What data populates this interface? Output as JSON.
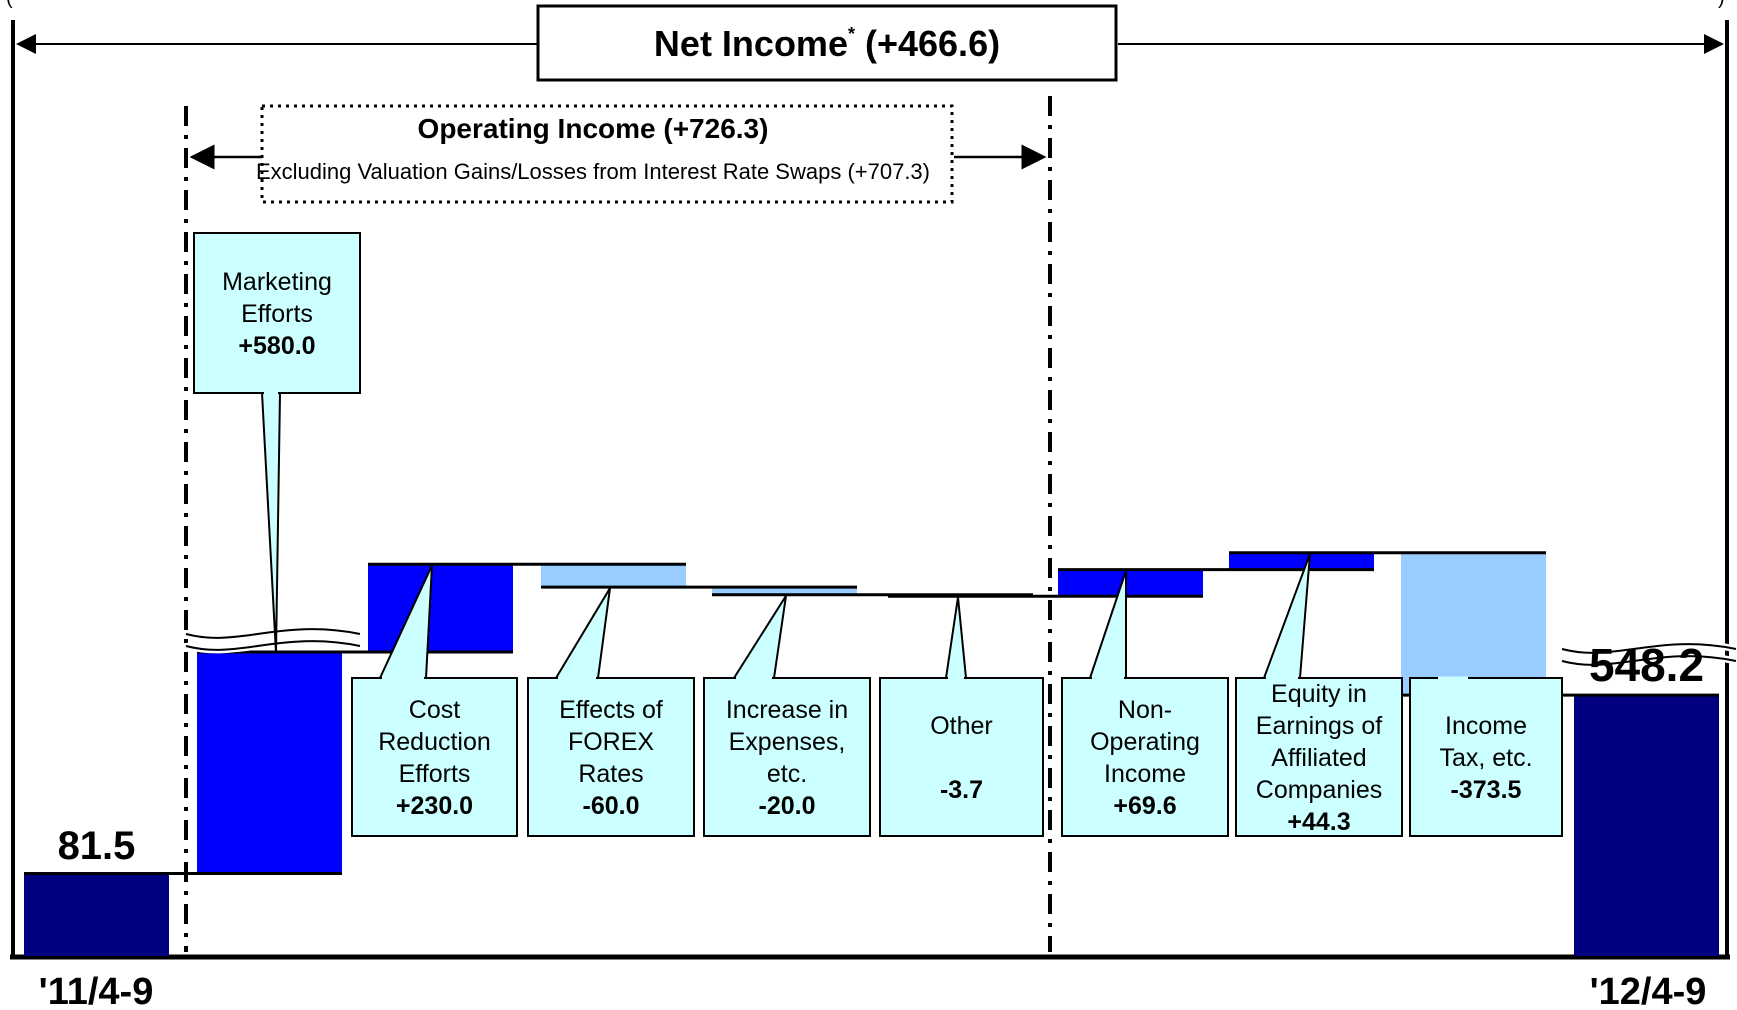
{
  "header": {
    "title_main": "Net Income",
    "title_mark": "*",
    "title_delta": "(+466.6)",
    "left_clip_text": "(",
    "right_clip_text": ")"
  },
  "operating_box": {
    "title": "Operating Income (+726.3)",
    "subtitle": "Excluding Valuation Gains/Losses from Interest Rate Swaps (+707.3)"
  },
  "colors": {
    "endpoint_bar": "#000080",
    "positive_bar": "#0000FF",
    "negative_bar": "#99CCFF",
    "callout_fill": "#CCFFFF",
    "line": "#000000"
  },
  "chart_data": {
    "type": "bar",
    "subtype": "waterfall",
    "axis_broken": true,
    "start": {
      "label": "'11/4-9",
      "value": 81.5,
      "value_text": "81.5"
    },
    "end": {
      "label": "'12/4-9",
      "value": 548.2,
      "value_text": "548.2"
    },
    "steps": [
      {
        "lines": [
          "Marketing",
          "Efforts"
        ],
        "value": 580.0,
        "value_text": "+580.0",
        "group": "operating"
      },
      {
        "lines": [
          "Cost",
          "Reduction",
          "Efforts"
        ],
        "value": 230.0,
        "value_text": "+230.0",
        "group": "operating"
      },
      {
        "lines": [
          "Effects of",
          "FOREX",
          "Rates"
        ],
        "value": -60.0,
        "value_text": "-60.0",
        "group": "operating"
      },
      {
        "lines": [
          "Increase in",
          "Expenses,",
          "etc."
        ],
        "value": -20.0,
        "value_text": "-20.0",
        "group": "operating"
      },
      {
        "lines": [
          "Other",
          ""
        ],
        "value": -3.7,
        "value_text": "-3.7",
        "group": "operating"
      },
      {
        "lines": [
          "Non-",
          "Operating",
          "Income"
        ],
        "value": 69.6,
        "value_text": "+69.6",
        "group": "non-operating"
      },
      {
        "lines": [
          "Equity in",
          "Earnings of",
          "Affiliated",
          "Companies"
        ],
        "value": 44.3,
        "value_text": "+44.3",
        "group": "non-operating"
      },
      {
        "lines": [
          "Income",
          "Tax, etc."
        ],
        "value": -373.5,
        "value_text": "-373.5",
        "group": "non-operating"
      }
    ]
  }
}
